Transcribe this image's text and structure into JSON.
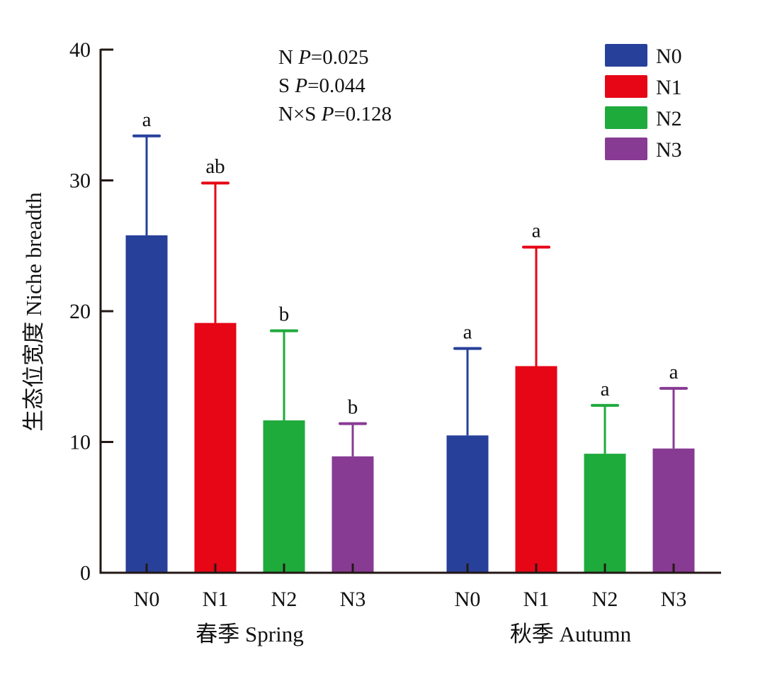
{
  "chart_data": {
    "type": "bar",
    "title": "",
    "ylabel": "生态位宽度 Niche breadth",
    "xlabel": "",
    "ylim": [
      0,
      40
    ],
    "yticks": [
      0,
      10,
      20,
      30,
      40
    ],
    "grid": false,
    "legend_position": "top-right",
    "groups": [
      {
        "label": "春季 Spring",
        "categories": [
          "N0",
          "N1",
          "N2",
          "N3"
        ],
        "values": [
          25.8,
          19.1,
          11.65,
          8.9
        ],
        "error_upper": [
          33.4,
          29.8,
          18.5,
          11.4
        ],
        "letters": [
          "a",
          "ab",
          "b",
          "b"
        ]
      },
      {
        "label": "秋季 Autumn",
        "categories": [
          "N0",
          "N1",
          "N2",
          "N3"
        ],
        "values": [
          10.5,
          15.8,
          9.1,
          9.5
        ],
        "error_upper": [
          17.15,
          24.9,
          12.8,
          14.1
        ],
        "letters": [
          "a",
          "a",
          "a",
          "a"
        ]
      }
    ],
    "series": [
      {
        "name": "N0",
        "color": "#27409a"
      },
      {
        "name": "N1",
        "color": "#e60616"
      },
      {
        "name": "N2",
        "color": "#1faa3c"
      },
      {
        "name": "N3",
        "color": "#873b93"
      }
    ],
    "annotations": [
      {
        "prefix": "N ",
        "italic": "P",
        "suffix": "=0.025"
      },
      {
        "prefix": "S ",
        "italic": "P",
        "suffix": "=0.044"
      },
      {
        "prefix": "N×S ",
        "italic": "P",
        "suffix": "=0.128"
      }
    ]
  }
}
